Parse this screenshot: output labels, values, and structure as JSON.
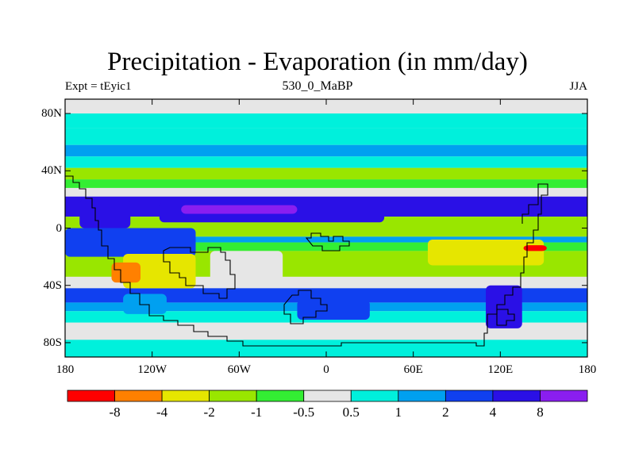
{
  "title": "Precipitation - Evaporation (in mm/day)",
  "subtitle_left": "Expt = tEyic1",
  "subtitle_center": "530_0_MaBP",
  "subtitle_right": "JJA",
  "chart_data": {
    "type": "heatmap",
    "title": "Precipitation - Evaporation (in mm/day)",
    "xlabel": "",
    "ylabel": "",
    "xlim": [
      -180,
      180
    ],
    "ylim": [
      -90,
      90
    ],
    "x_ticks": [
      {
        "value": -180,
        "label": "180"
      },
      {
        "value": -120,
        "label": "120W"
      },
      {
        "value": -60,
        "label": "60W"
      },
      {
        "value": 0,
        "label": "0"
      },
      {
        "value": 60,
        "label": "60E"
      },
      {
        "value": 120,
        "label": "120E"
      },
      {
        "value": 180,
        "label": "180"
      }
    ],
    "y_ticks": [
      {
        "value": 80,
        "label": "80N"
      },
      {
        "value": 40,
        "label": "40N"
      },
      {
        "value": 0,
        "label": "0"
      },
      {
        "value": -40,
        "label": "40S"
      },
      {
        "value": -80,
        "label": "80S"
      }
    ],
    "colorbar": {
      "colors": [
        "#ff0000",
        "#ff8000",
        "#e6e600",
        "#99e600",
        "#33ee33",
        "#e6e6e6",
        "#00f0dc",
        "#00a0f0",
        "#1040f0",
        "#2a10e6",
        "#8a1ef0"
      ],
      "boundaries": [
        "-8",
        "-4",
        "-2",
        "-1",
        "-0.5",
        "0.5",
        "1",
        "2",
        "4",
        "8"
      ]
    },
    "zonal_bands": [
      {
        "lat_from": 90,
        "lat_to": 80,
        "level": 0.0
      },
      {
        "lat_from": 80,
        "lat_to": 70,
        "level": 0.7
      },
      {
        "lat_from": 70,
        "lat_to": 58,
        "level": 0.8
      },
      {
        "lat_from": 58,
        "lat_to": 50,
        "level": 1.5
      },
      {
        "lat_from": 50,
        "lat_to": 42,
        "level": 0.8
      },
      {
        "lat_from": 42,
        "lat_to": 34,
        "level": -1.5
      },
      {
        "lat_from": 34,
        "lat_to": 28,
        "level": -0.7
      },
      {
        "lat_from": 28,
        "lat_to": 22,
        "level": 0.0
      },
      {
        "lat_from": 22,
        "lat_to": 8,
        "level": 5.0
      },
      {
        "lat_from": 8,
        "lat_to": -6,
        "level": -1.5
      },
      {
        "lat_from": -6,
        "lat_to": -10,
        "level": 1.5
      },
      {
        "lat_from": -10,
        "lat_to": -16,
        "level": -0.7
      },
      {
        "lat_from": -16,
        "lat_to": -34,
        "level": -1.5
      },
      {
        "lat_from": -34,
        "lat_to": -42,
        "level": 0.0
      },
      {
        "lat_from": -42,
        "lat_to": -52,
        "level": 3.0
      },
      {
        "lat_from": -52,
        "lat_to": -58,
        "level": 1.5
      },
      {
        "lat_from": -58,
        "lat_to": -66,
        "level": 0.8
      },
      {
        "lat_from": -66,
        "lat_to": -78,
        "level": 0.0
      },
      {
        "lat_from": -78,
        "lat_to": -90,
        "level": 0.7
      }
    ],
    "regions": [
      {
        "lon": [
          -180,
          -90
        ],
        "lat": [
          -20,
          0
        ],
        "level": 3.0
      },
      {
        "lon": [
          -115,
          40
        ],
        "lat": [
          4,
          18
        ],
        "level": 5.0
      },
      {
        "lon": [
          -100,
          -20
        ],
        "lat": [
          10,
          16
        ],
        "level": 10.0
      },
      {
        "lon": [
          -140,
          -90
        ],
        "lat": [
          -42,
          -18
        ],
        "level": -3.0
      },
      {
        "lon": [
          -148,
          -128
        ],
        "lat": [
          -38,
          -24
        ],
        "level": -6.0
      },
      {
        "lon": [
          70,
          150
        ],
        "lat": [
          -26,
          -8
        ],
        "level": -3.0
      },
      {
        "lon": [
          136,
          152
        ],
        "lat": [
          -16,
          -12
        ],
        "level": -10.0
      },
      {
        "lon": [
          -80,
          -30
        ],
        "lat": [
          -40,
          -16
        ],
        "level": 0.0
      },
      {
        "lon": [
          110,
          135
        ],
        "lat": [
          -70,
          -40
        ],
        "level": 5.0
      },
      {
        "lon": [
          -140,
          -110
        ],
        "lat": [
          -60,
          -46
        ],
        "level": 1.5
      },
      {
        "lon": [
          -20,
          30
        ],
        "lat": [
          -64,
          -50
        ],
        "level": 3.0
      },
      {
        "lon": [
          -170,
          -135
        ],
        "lat": [
          0,
          20
        ],
        "level": 5.0
      }
    ]
  }
}
